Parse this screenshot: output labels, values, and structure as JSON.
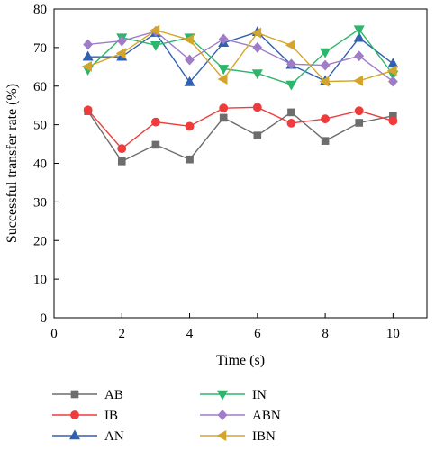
{
  "chart_data": {
    "type": "line",
    "xlabel": "Time (s)",
    "ylabel": "Successful transfer rate (%)",
    "xlim": [
      0,
      11
    ],
    "ylim": [
      0,
      80
    ],
    "xticks": [
      0,
      2,
      4,
      6,
      8,
      10
    ],
    "yticks": [
      0,
      10,
      20,
      30,
      40,
      50,
      60,
      70,
      80
    ],
    "x": [
      1,
      2,
      3,
      4,
      5,
      6,
      7,
      8,
      9,
      10
    ],
    "grid": false,
    "legend_position": "bottom",
    "series": [
      {
        "name": "AB",
        "color": "#6d6d6d",
        "marker": "square",
        "values": [
          53.5,
          40.5,
          44.8,
          41.0,
          51.8,
          47.2,
          53.2,
          45.8,
          50.5,
          52.3
        ]
      },
      {
        "name": "IB",
        "color": "#ee3b3b",
        "marker": "circle",
        "values": [
          53.8,
          43.8,
          50.7,
          49.6,
          54.3,
          54.5,
          50.4,
          51.5,
          53.6,
          51.0
        ]
      },
      {
        "name": "AN",
        "color": "#3060b0",
        "marker": "triangle-up",
        "values": [
          67.6,
          67.6,
          73.8,
          61.0,
          71.2,
          74.0,
          65.5,
          61.3,
          72.5,
          65.8
        ]
      },
      {
        "name": "IN",
        "color": "#2db56b",
        "marker": "triangle-down",
        "values": [
          64.3,
          72.6,
          70.6,
          72.6,
          64.5,
          63.3,
          60.4,
          68.8,
          74.7,
          63.0
        ]
      },
      {
        "name": "ABN",
        "color": "#a07cc8",
        "marker": "diamond",
        "values": [
          70.8,
          71.7,
          74.2,
          66.8,
          72.2,
          70.0,
          65.7,
          65.4,
          67.8,
          61.2
        ]
      },
      {
        "name": "IBN",
        "color": "#d4a52a",
        "marker": "triangle-left",
        "values": [
          65.1,
          68.5,
          74.5,
          72.0,
          61.8,
          73.8,
          70.6,
          61.2,
          61.4,
          64.0
        ]
      }
    ]
  }
}
